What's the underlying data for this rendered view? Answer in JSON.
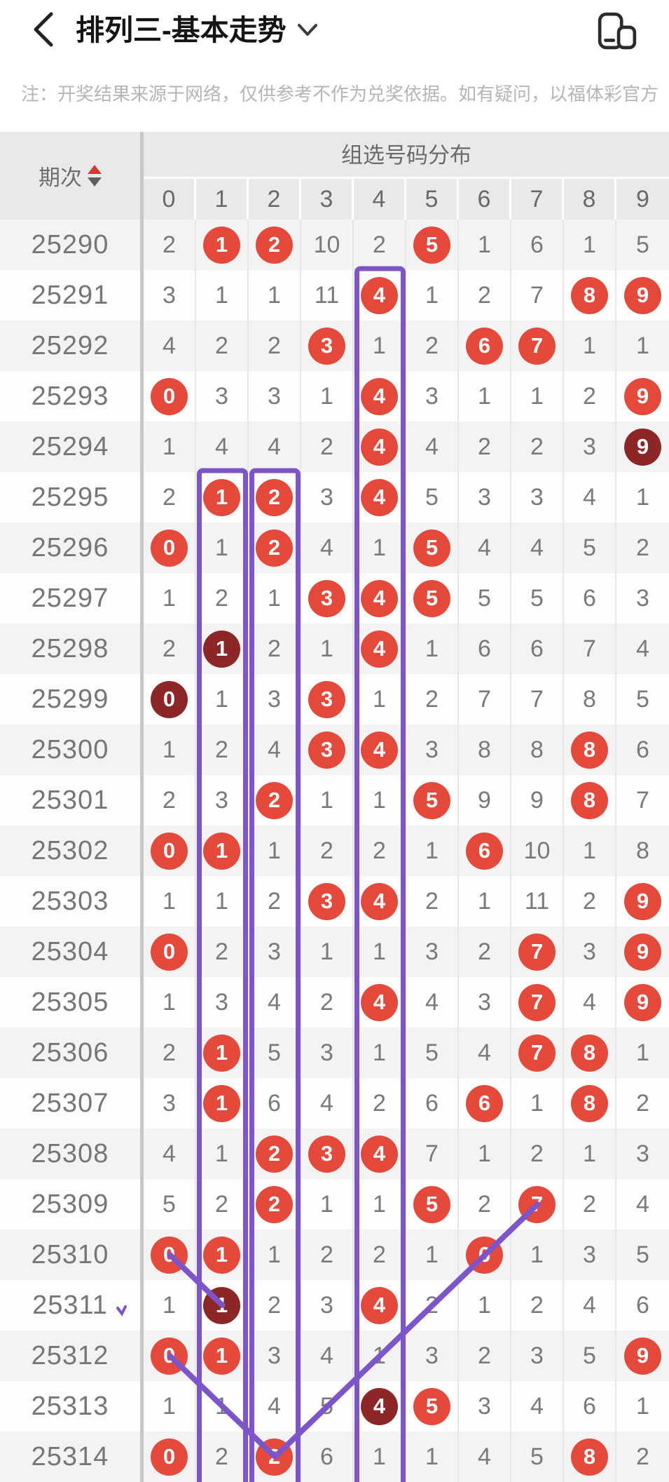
{
  "header": {
    "title": "排列三-基本走势"
  },
  "notice": "注：开奖结果来源于网络，仅供参考不作为兑奖依据。如有疑问，以福体彩官方",
  "table": {
    "period_label": "期次",
    "group_label": "组选号码分布",
    "digits": [
      "0",
      "1",
      "2",
      "3",
      "4",
      "5",
      "6",
      "7",
      "8",
      "9"
    ],
    "rows": [
      {
        "period": "25290",
        "values": [
          "2",
          "1",
          "2",
          "10",
          "2",
          "5",
          "1",
          "6",
          "1",
          "5"
        ],
        "marks": {
          "1": "red",
          "2": "red",
          "5": "red"
        }
      },
      {
        "period": "25291",
        "values": [
          "3",
          "1",
          "1",
          "11",
          "4",
          "1",
          "2",
          "7",
          "8",
          "9"
        ],
        "marks": {
          "4": "red",
          "8": "red",
          "9": "red"
        }
      },
      {
        "period": "25292",
        "values": [
          "4",
          "2",
          "2",
          "3",
          "1",
          "2",
          "6",
          "7",
          "1",
          "1"
        ],
        "marks": {
          "3": "red",
          "6": "red",
          "7": "red"
        }
      },
      {
        "period": "25293",
        "values": [
          "0",
          "3",
          "3",
          "1",
          "4",
          "3",
          "1",
          "1",
          "2",
          "9"
        ],
        "marks": {
          "0": "red",
          "4": "red",
          "9": "red"
        }
      },
      {
        "period": "25294",
        "values": [
          "1",
          "4",
          "4",
          "2",
          "4",
          "4",
          "2",
          "2",
          "3",
          "9"
        ],
        "marks": {
          "4": "red",
          "9": "dark"
        }
      },
      {
        "period": "25295",
        "values": [
          "2",
          "1",
          "2",
          "3",
          "4",
          "5",
          "3",
          "3",
          "4",
          "1"
        ],
        "marks": {
          "1": "red",
          "2": "red",
          "4": "red"
        }
      },
      {
        "period": "25296",
        "values": [
          "0",
          "1",
          "2",
          "4",
          "1",
          "5",
          "4",
          "4",
          "5",
          "2"
        ],
        "marks": {
          "0": "red",
          "2": "red",
          "5": "red"
        }
      },
      {
        "period": "25297",
        "values": [
          "1",
          "2",
          "1",
          "3",
          "4",
          "5",
          "5",
          "5",
          "6",
          "3"
        ],
        "marks": {
          "3": "red",
          "4": "red",
          "5": "red"
        }
      },
      {
        "period": "25298",
        "values": [
          "2",
          "1",
          "2",
          "1",
          "4",
          "1",
          "6",
          "6",
          "7",
          "4"
        ],
        "marks": {
          "1": "dark",
          "4": "red"
        }
      },
      {
        "period": "25299",
        "values": [
          "0",
          "1",
          "3",
          "3",
          "1",
          "2",
          "7",
          "7",
          "8",
          "5"
        ],
        "marks": {
          "0": "dark",
          "3": "red"
        }
      },
      {
        "period": "25300",
        "values": [
          "1",
          "2",
          "4",
          "3",
          "4",
          "3",
          "8",
          "8",
          "8",
          "6"
        ],
        "marks": {
          "3": "red",
          "4": "red",
          "8": "red"
        }
      },
      {
        "period": "25301",
        "values": [
          "2",
          "3",
          "2",
          "1",
          "1",
          "5",
          "9",
          "9",
          "8",
          "7"
        ],
        "marks": {
          "2": "red",
          "5": "red",
          "8": "red"
        }
      },
      {
        "period": "25302",
        "values": [
          "0",
          "1",
          "1",
          "2",
          "2",
          "1",
          "6",
          "10",
          "1",
          "8"
        ],
        "marks": {
          "0": "red",
          "1": "red",
          "6": "red"
        }
      },
      {
        "period": "25303",
        "values": [
          "1",
          "1",
          "2",
          "3",
          "4",
          "2",
          "1",
          "11",
          "2",
          "9"
        ],
        "marks": {
          "3": "red",
          "4": "red",
          "9": "red"
        }
      },
      {
        "period": "25304",
        "values": [
          "0",
          "2",
          "3",
          "1",
          "1",
          "3",
          "2",
          "7",
          "3",
          "9"
        ],
        "marks": {
          "0": "red",
          "7": "red",
          "9": "red"
        }
      },
      {
        "period": "25305",
        "values": [
          "1",
          "3",
          "4",
          "2",
          "4",
          "4",
          "3",
          "7",
          "4",
          "9"
        ],
        "marks": {
          "4": "red",
          "7": "red",
          "9": "red"
        }
      },
      {
        "period": "25306",
        "values": [
          "2",
          "1",
          "5",
          "3",
          "1",
          "5",
          "4",
          "7",
          "8",
          "1"
        ],
        "marks": {
          "1": "red",
          "7": "red",
          "8": "red"
        }
      },
      {
        "period": "25307",
        "values": [
          "3",
          "1",
          "6",
          "4",
          "2",
          "6",
          "6",
          "1",
          "8",
          "2"
        ],
        "marks": {
          "1": "red",
          "6": "red",
          "8": "red"
        }
      },
      {
        "period": "25308",
        "values": [
          "4",
          "1",
          "2",
          "3",
          "4",
          "7",
          "1",
          "2",
          "1",
          "3"
        ],
        "marks": {
          "2": "red",
          "3": "red",
          "4": "red"
        }
      },
      {
        "period": "25309",
        "values": [
          "5",
          "2",
          "2",
          "1",
          "1",
          "5",
          "2",
          "7",
          "2",
          "4"
        ],
        "marks": {
          "2": "red",
          "5": "red",
          "7": "red"
        }
      },
      {
        "period": "25310",
        "values": [
          "0",
          "1",
          "1",
          "2",
          "2",
          "1",
          "6",
          "1",
          "3",
          "5"
        ],
        "marks": {
          "0": "red",
          "1": "red",
          "6": "red"
        }
      },
      {
        "period": "25311",
        "values": [
          "1",
          "1",
          "2",
          "3",
          "4",
          "2",
          "1",
          "2",
          "4",
          "6"
        ],
        "marks": {
          "1": "dark",
          "4": "red"
        }
      },
      {
        "period": "25312",
        "values": [
          "0",
          "1",
          "3",
          "4",
          "1",
          "3",
          "2",
          "3",
          "5",
          "9"
        ],
        "marks": {
          "0": "red",
          "1": "red",
          "9": "red"
        }
      },
      {
        "period": "25313",
        "values": [
          "1",
          "1",
          "4",
          "5",
          "4",
          "5",
          "3",
          "4",
          "6",
          "1"
        ],
        "marks": {
          "4": "dark",
          "5": "red"
        }
      },
      {
        "period": "25314",
        "values": [
          "0",
          "2",
          "2",
          "6",
          "1",
          "1",
          "4",
          "5",
          "8",
          "2"
        ],
        "marks": {
          "0": "red",
          "2": "red",
          "8": "red"
        }
      }
    ]
  },
  "colors": {
    "red_circle": "#e5493b",
    "dark_circle": "#8d2626",
    "purple": "#7c55c8"
  },
  "annotations": {
    "column_frames": [
      {
        "col": 4,
        "from_period": "25291"
      },
      {
        "col": 1,
        "from_period": "25295"
      },
      {
        "col": 2,
        "from_period": "25295"
      }
    ],
    "trend_lines": [
      {
        "from": {
          "period": "25310",
          "col": 0
        },
        "to": {
          "period": "25311",
          "col": 1
        }
      },
      {
        "from": {
          "period": "25312",
          "col": 0
        },
        "to": {
          "period": "25314",
          "col": 2
        }
      },
      {
        "from": {
          "period": "25309",
          "col": 7
        },
        "to": {
          "period": "25314",
          "col": 2
        }
      }
    ],
    "stray_mark": {
      "near_period": "25311"
    }
  }
}
